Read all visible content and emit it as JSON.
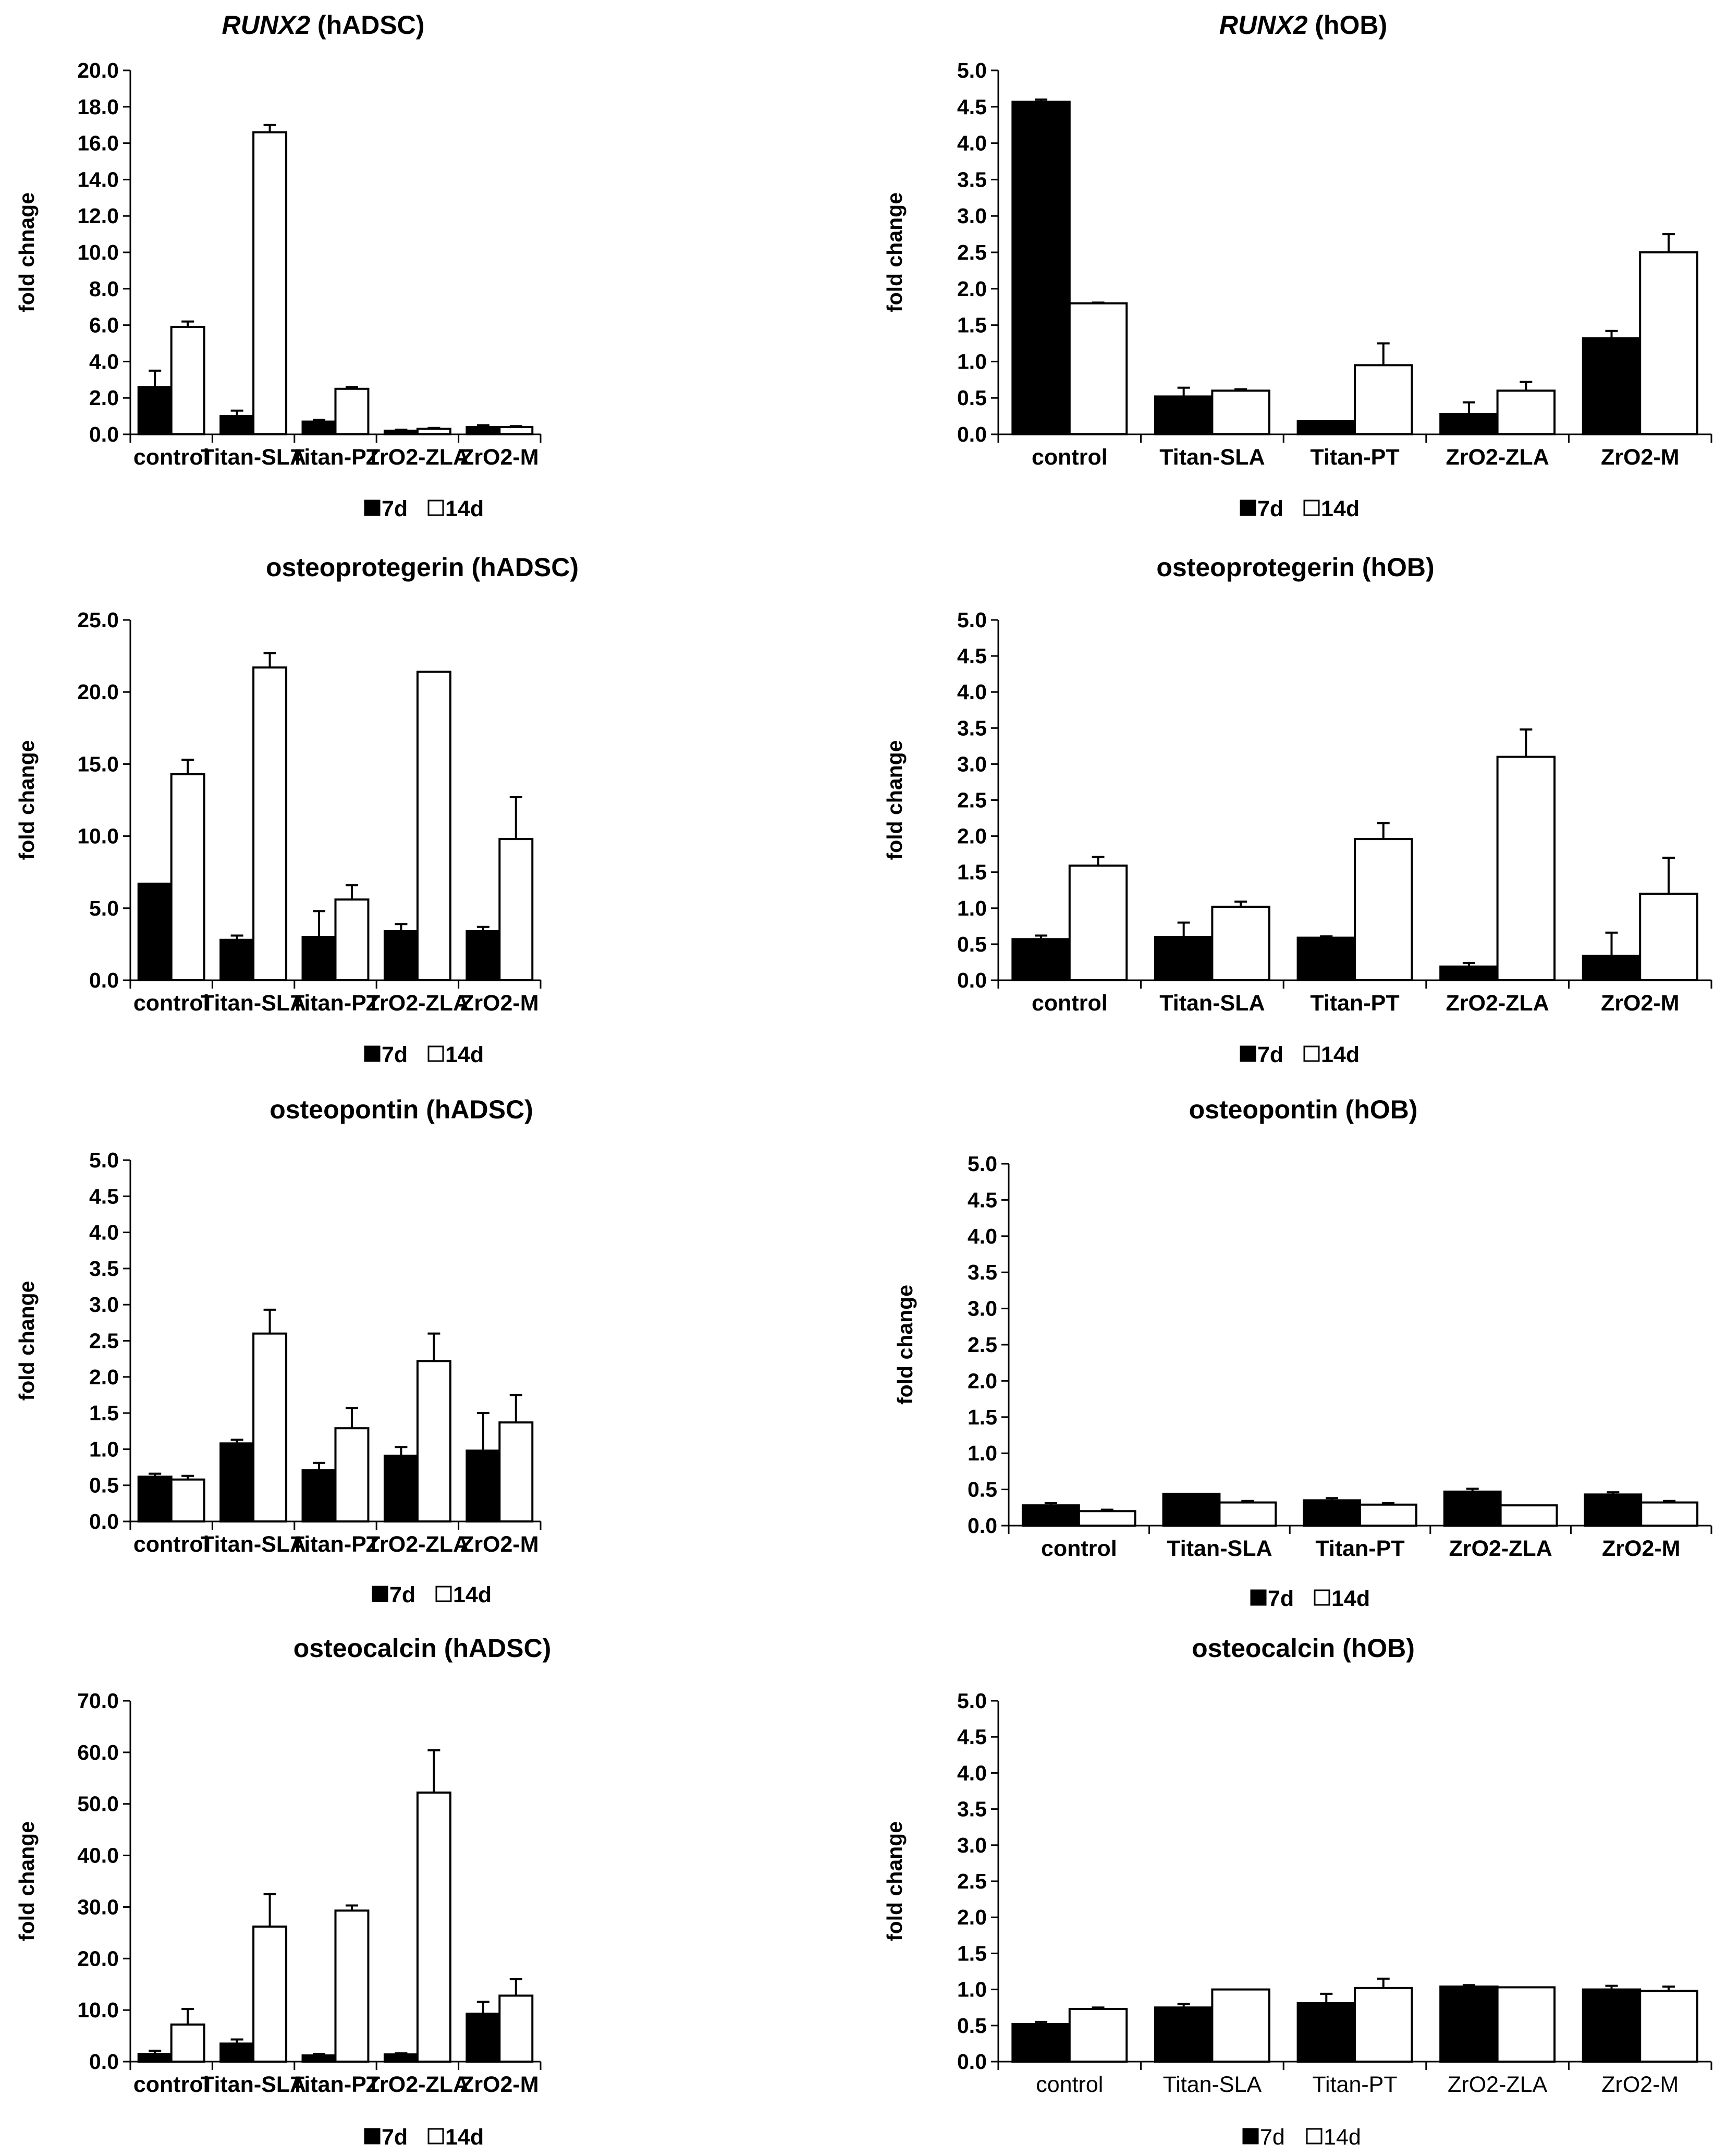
{
  "series_names": [
    "7d",
    "14d"
  ],
  "colors": {
    "bar_7d": "#000000",
    "bar_14d": "#ffffff",
    "stroke": "#000000"
  },
  "y_axis_label": "fold change",
  "categories": [
    "control",
    "Titan-SLA",
    "Titan-PT",
    "ZrO2-ZLA",
    "ZrO2-M"
  ],
  "chart_data": [
    {
      "type": "bar",
      "title": "RUNX2 (hADSC)",
      "title_italic_part": "RUNX2",
      "title_rest": " (hADSC)",
      "ylabel": "fold chnage",
      "ylim": [
        0,
        20
      ],
      "ytick_step": 2,
      "tick_decimals": 1,
      "categories": [
        "control",
        "Titan-SLA",
        "Titan-PT",
        "ZrO2-ZLA",
        "ZrO2-M"
      ],
      "series": [
        {
          "name": "7d",
          "values": [
            2.6,
            1.0,
            0.7,
            0.2,
            0.4
          ],
          "errors": [
            0.9,
            0.3,
            0.1,
            0.05,
            0.1
          ]
        },
        {
          "name": "14d",
          "values": [
            5.9,
            16.6,
            2.5,
            0.3,
            0.4
          ],
          "errors": [
            0.3,
            0.4,
            0.1,
            0.05,
            0.05
          ]
        }
      ]
    },
    {
      "type": "bar",
      "title": "RUNX2 (hOB)",
      "title_italic_part": "RUNX2",
      "title_rest": " (hOB)",
      "ylabel": "fold change",
      "ylim": [
        0,
        5
      ],
      "ytick_step": 0.5,
      "tick_decimals": 1,
      "categories": [
        "control",
        "Titan-SLA",
        "Titan-PT",
        "ZrO2-ZLA",
        "ZrO2-M"
      ],
      "series": [
        {
          "name": "7d",
          "values": [
            4.57,
            0.52,
            0.18,
            0.28,
            1.32
          ],
          "errors": [
            0.03,
            0.12,
            0.0,
            0.16,
            0.1
          ]
        },
        {
          "name": "14d",
          "values": [
            1.8,
            0.6,
            0.95,
            0.6,
            2.5
          ],
          "errors": [
            0.01,
            0.02,
            0.3,
            0.12,
            0.25
          ]
        }
      ]
    },
    {
      "type": "bar",
      "title": "osteoprotegerin (hADSC)",
      "ylabel": "fold change",
      "ylim": [
        0,
        25
      ],
      "ytick_step": 5,
      "tick_decimals": 1,
      "categories": [
        "control",
        "Titan-SLA",
        "Titan-PT",
        "ZrO2-ZLA",
        "ZrO2-M"
      ],
      "series": [
        {
          "name": "7d",
          "values": [
            6.7,
            2.8,
            3.0,
            3.4,
            3.4
          ],
          "errors": [
            0.0,
            0.3,
            1.8,
            0.5,
            0.3
          ]
        },
        {
          "name": "14d",
          "values": [
            14.3,
            21.7,
            5.6,
            21.4,
            9.8
          ],
          "errors": [
            1.0,
            1.0,
            1.0,
            0.0,
            2.9
          ]
        }
      ]
    },
    {
      "type": "bar",
      "title": "osteoprotegerin (hOB)",
      "ylabel": "fold change",
      "ylim": [
        0,
        5
      ],
      "ytick_step": 0.5,
      "tick_decimals": 1,
      "categories": [
        "control",
        "Titan-SLA",
        "Titan-PT",
        "ZrO2-ZLA",
        "ZrO2-M"
      ],
      "series": [
        {
          "name": "7d",
          "values": [
            0.57,
            0.6,
            0.59,
            0.19,
            0.34
          ],
          "errors": [
            0.05,
            0.2,
            0.02,
            0.05,
            0.32
          ]
        },
        {
          "name": "14d",
          "values": [
            1.59,
            1.02,
            1.96,
            3.1,
            1.2
          ],
          "errors": [
            0.12,
            0.07,
            0.22,
            0.38,
            0.5
          ]
        }
      ]
    },
    {
      "type": "bar",
      "title": "osteopontin (hADSC)",
      "ylabel": "fold change",
      "ylim": [
        0,
        5
      ],
      "ytick_step": 0.5,
      "tick_decimals": 1,
      "categories": [
        "control",
        "Titan-SLA",
        "Titan-PT",
        "ZrO2-ZLA",
        "ZrO2-M"
      ],
      "series": [
        {
          "name": "7d",
          "values": [
            0.62,
            1.08,
            0.71,
            0.91,
            0.98
          ],
          "errors": [
            0.04,
            0.05,
            0.1,
            0.12,
            0.52
          ]
        },
        {
          "name": "14d",
          "values": [
            0.58,
            2.6,
            1.29,
            2.22,
            1.37
          ],
          "errors": [
            0.05,
            0.33,
            0.28,
            0.38,
            0.38
          ]
        }
      ]
    },
    {
      "type": "bar",
      "title": "osteopontin (hOB)",
      "ylabel": "fold change",
      "ylim": [
        0,
        5
      ],
      "ytick_step": 0.5,
      "tick_decimals": 1,
      "categories": [
        "control",
        "Titan-SLA",
        "Titan-PT",
        "ZrO2-ZLA",
        "ZrO2-M"
      ],
      "series": [
        {
          "name": "7d",
          "values": [
            0.28,
            0.44,
            0.35,
            0.47,
            0.43
          ],
          "errors": [
            0.03,
            0.0,
            0.03,
            0.04,
            0.03
          ]
        },
        {
          "name": "14d",
          "values": [
            0.2,
            0.32,
            0.29,
            0.28,
            0.32
          ],
          "errors": [
            0.02,
            0.02,
            0.02,
            0.0,
            0.02
          ]
        }
      ]
    },
    {
      "type": "bar",
      "title": "osteocalcin (hADSC)",
      "ylabel": "fold change",
      "ylim": [
        0,
        70
      ],
      "ytick_step": 10,
      "tick_decimals": 1,
      "categories": [
        "control",
        "Titan-SLA",
        "Titan-PT",
        "ZrO2-ZLA",
        "ZrO2-M"
      ],
      "series": [
        {
          "name": "7d",
          "values": [
            1.5,
            3.5,
            1.2,
            1.4,
            9.3
          ],
          "errors": [
            0.6,
            0.8,
            0.3,
            0.2,
            2.3
          ]
        },
        {
          "name": "14d",
          "values": [
            7.2,
            26.2,
            29.3,
            52.2,
            12.8
          ],
          "errors": [
            3.0,
            6.3,
            1.0,
            8.2,
            3.2
          ]
        }
      ]
    },
    {
      "type": "bar",
      "title": "osteocalcin (hOB)",
      "ylabel": "fold change",
      "ylim": [
        0,
        5
      ],
      "ytick_step": 0.5,
      "tick_decimals": 1,
      "categories": [
        "control",
        "Titan-SLA",
        "Titan-PT",
        "ZrO2-ZLA",
        "ZrO2-M"
      ],
      "series": [
        {
          "name": "7d",
          "values": [
            0.52,
            0.75,
            0.81,
            1.04,
            1.0
          ],
          "errors": [
            0.03,
            0.05,
            0.13,
            0.02,
            0.05
          ]
        },
        {
          "name": "14d",
          "values": [
            0.73,
            1.0,
            1.02,
            1.03,
            0.98
          ],
          "errors": [
            0.02,
            0.0,
            0.13,
            0.0,
            0.06
          ]
        }
      ]
    }
  ]
}
